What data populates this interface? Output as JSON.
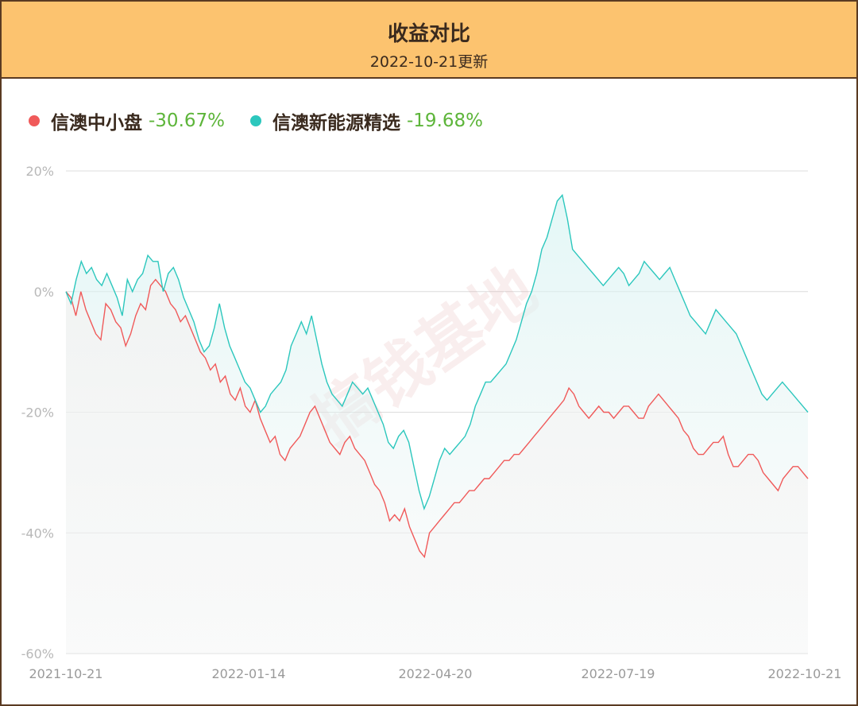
{
  "header": {
    "title": "收益对比",
    "subtitle": "2022-10-21更新"
  },
  "watermark": "搞钱基地",
  "legend": [
    {
      "name": "信澳中小盘",
      "value": "-30.67%",
      "color": "#f05a5a"
    },
    {
      "name": "信澳新能源精选",
      "value": "-19.68%",
      "color": "#2cc7bd"
    }
  ],
  "chart_data": {
    "type": "line",
    "x_labels": [
      "2021-10-21",
      "2022-01-14",
      "2022-04-20",
      "2022-07-19",
      "2022-10-21"
    ],
    "y_ticks": [
      "20%",
      "0%",
      "-20%",
      "-40%",
      "-60%"
    ],
    "ylim": [
      -60,
      20
    ],
    "grid": true,
    "legend_position": "top-left",
    "series": [
      {
        "name": "信澳中小盘",
        "color": "#f05a5a",
        "values": [
          0,
          -1,
          -4,
          0,
          -3,
          -5,
          -7,
          -8,
          -2,
          -3,
          -5,
          -6,
          -9,
          -7,
          -4,
          -2,
          -3,
          1,
          2,
          1,
          0,
          -2,
          -3,
          -5,
          -4,
          -6,
          -8,
          -10,
          -11,
          -13,
          -12,
          -15,
          -14,
          -17,
          -18,
          -16,
          -19,
          -20,
          -18,
          -21,
          -23,
          -25,
          -24,
          -27,
          -28,
          -26,
          -25,
          -24,
          -22,
          -20,
          -19,
          -21,
          -23,
          -25,
          -26,
          -27,
          -25,
          -24,
          -26,
          -27,
          -28,
          -30,
          -32,
          -33,
          -35,
          -38,
          -37,
          -38,
          -36,
          -39,
          -41,
          -43,
          -44,
          -40,
          -39,
          -38,
          -37,
          -36,
          -35,
          -35,
          -34,
          -33,
          -33,
          -32,
          -31,
          -31,
          -30,
          -29,
          -28,
          -28,
          -27,
          -27,
          -26,
          -25,
          -24,
          -23,
          -22,
          -21,
          -20,
          -19,
          -18,
          -16,
          -17,
          -19,
          -20,
          -21,
          -20,
          -19,
          -20,
          -20,
          -21,
          -20,
          -19,
          -19,
          -20,
          -21,
          -21,
          -19,
          -18,
          -17,
          -18,
          -19,
          -20,
          -21,
          -23,
          -24,
          -26,
          -27,
          -27,
          -26,
          -25,
          -25,
          -24,
          -27,
          -29,
          -29,
          -28,
          -27,
          -27,
          -28,
          -30,
          -31,
          -32,
          -33,
          -31,
          -30,
          -29,
          -29,
          -30,
          -31
        ]
      },
      {
        "name": "信澳新能源精选",
        "color": "#2cc7bd",
        "values": [
          0,
          -2,
          2,
          5,
          3,
          4,
          2,
          1,
          3,
          1,
          -1,
          -4,
          2,
          0,
          2,
          3,
          6,
          5,
          5,
          0,
          3,
          4,
          2,
          -1,
          -3,
          -5,
          -8,
          -10,
          -9,
          -6,
          -2,
          -6,
          -9,
          -11,
          -13,
          -15,
          -16,
          -18,
          -20,
          -19,
          -17,
          -16,
          -15,
          -13,
          -9,
          -7,
          -5,
          -7,
          -4,
          -8,
          -12,
          -15,
          -17,
          -18,
          -19,
          -17,
          -15,
          -16,
          -17,
          -16,
          -18,
          -20,
          -22,
          -25,
          -26,
          -24,
          -23,
          -25,
          -29,
          -33,
          -36,
          -34,
          -31,
          -28,
          -26,
          -27,
          -26,
          -25,
          -24,
          -22,
          -19,
          -17,
          -15,
          -15,
          -14,
          -13,
          -12,
          -10,
          -8,
          -5,
          -2,
          0,
          3,
          7,
          9,
          12,
          15,
          16,
          12,
          7,
          6,
          5,
          4,
          3,
          2,
          1,
          2,
          3,
          4,
          3,
          1,
          2,
          3,
          5,
          4,
          3,
          2,
          3,
          4,
          2,
          0,
          -2,
          -4,
          -5,
          -6,
          -7,
          -5,
          -3,
          -4,
          -5,
          -6,
          -7,
          -9,
          -11,
          -13,
          -15,
          -17,
          -18,
          -17,
          -16,
          -15,
          -16,
          -17,
          -18,
          -19,
          -20
        ]
      }
    ]
  }
}
